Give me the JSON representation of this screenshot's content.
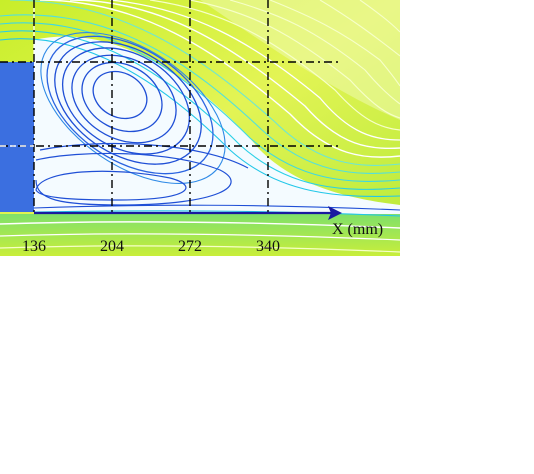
{
  "figure": {
    "x_axis_label": "X (mm)",
    "x_ticks": [
      "136",
      "204",
      "272",
      "340"
    ],
    "colors": {
      "background_flow": "#d9f03a",
      "high_velocity": "#ffffff",
      "vortex_lines": "#1f4fd6",
      "outer_lines": "#22c7e8",
      "step_block": "#3b6fe0",
      "grid_lines": "#000000"
    }
  }
}
